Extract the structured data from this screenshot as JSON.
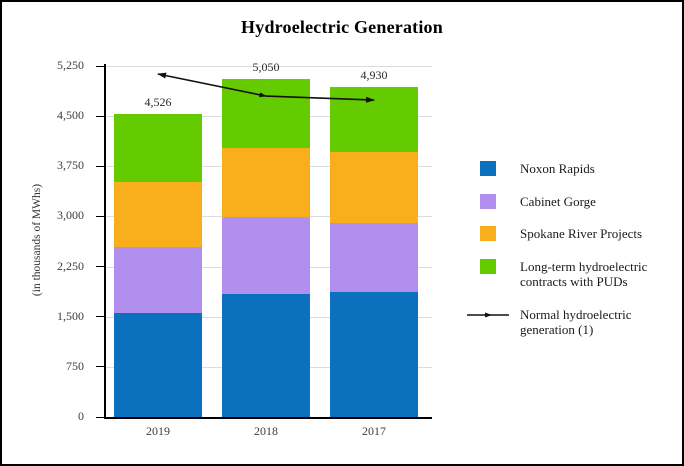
{
  "title": "Hydroelectric Generation",
  "y_axis_label": "(in thousands of MWhs)",
  "colors": {
    "background": "#FFFFFF",
    "frame_border": "#000000",
    "axis": "#000000",
    "grid": "#DCDCDC",
    "noxon_blue": "#0B70BE",
    "cabinet_purple": "#B18FEF",
    "spokane_orange": "#F9AE1B",
    "puds_green": "#63CB00",
    "line_black": "#111111"
  },
  "chart_data": {
    "type": "bar",
    "subtype": "stacked-column-with-line-overlay",
    "title": "Hydroelectric Generation",
    "xlabel": "",
    "ylabel": "(in thousands of MWhs)",
    "categories": [
      "2019",
      "2018",
      "2017"
    ],
    "series": [
      {
        "name": "Noxon Rapids",
        "color": "#0B70BE",
        "values": [
          1560,
          1835,
          1865
        ]
      },
      {
        "name": "Cabinet Gorge",
        "color": "#B18FEF",
        "values": [
          990,
          1150,
          1030
        ]
      },
      {
        "name": "Spokane River Projects",
        "color": "#F9AE1B",
        "values": [
          970,
          1045,
          1070
        ]
      },
      {
        "name": "Long-term hydroelectric contracts with PUDs",
        "color": "#63CB00",
        "values": [
          1006,
          1020,
          965
        ]
      }
    ],
    "bar_totals": [
      4526,
      5050,
      4930
    ],
    "bar_total_labels": [
      "4,526",
      "5,050",
      "4,930"
    ],
    "line_series": {
      "name": "Normal hydroelectric generation (1)",
      "color": "#111111",
      "values": [
        5130,
        4800,
        4740
      ]
    },
    "ylim": [
      0,
      5250
    ],
    "yticks": [
      0,
      750,
      1500,
      2250,
      3000,
      3750,
      4500,
      5250
    ],
    "ytick_labels": [
      "0",
      "750",
      "1,500",
      "2,250",
      "3,000",
      "3,750",
      "4,500",
      "5,250"
    ],
    "grid": true,
    "legend_position": "right"
  },
  "legend": {
    "items": [
      {
        "label": "Noxon Rapids",
        "swatch": "square",
        "color": "#0B70BE"
      },
      {
        "label": "Cabinet Gorge",
        "swatch": "square",
        "color": "#B18FEF"
      },
      {
        "label": "Spokane River Projects",
        "swatch": "square",
        "color": "#F9AE1B"
      },
      {
        "label": "Long-term hydroelectric contracts with PUDs",
        "swatch": "square",
        "color": "#63CB00"
      },
      {
        "label": "Normal hydroelectric generation (1)",
        "swatch": "line",
        "color": "#111111"
      }
    ]
  }
}
